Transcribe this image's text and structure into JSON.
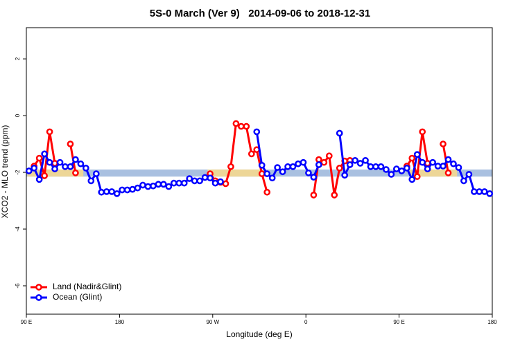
{
  "chart_data": {
    "type": "line",
    "title": "5S-0 March (Ver 9)   2014-09-06 to 2018-12-31",
    "xlabel": "Longitude (deg E)",
    "ylabel": "XCO2 - MLO trend (ppm)",
    "xlim": [
      90,
      540
    ],
    "ylim": [
      -7,
      3.1
    ],
    "xticks": [
      {
        "value": 90,
        "label": "90 E"
      },
      180,
      {
        "value": 270,
        "label": "90 W"
      },
      {
        "value": 360,
        "label": "0"
      },
      {
        "value": 450,
        "label": "90 E"
      },
      {
        "value": 540,
        "label": "180"
      }
    ],
    "yticks": [
      2,
      0,
      -2,
      -4,
      -6
    ],
    "legend": "bottom-left",
    "bands": [
      {
        "x": [
          90,
          540
        ],
        "y": [
          -2.15,
          -1.9
        ],
        "color": "#a9c0e0"
      },
      {
        "x": [
          91,
          145
        ],
        "y": [
          -2.15,
          -1.9
        ],
        "color": "#f9d98a"
      },
      {
        "x": [
          265,
          322
        ],
        "y": [
          -2.15,
          -1.9
        ],
        "color": "#f9d98a"
      },
      {
        "x": [
          460,
          506
        ],
        "y": [
          -2.15,
          -1.9
        ],
        "color": "#f9d98a"
      }
    ],
    "x": [
      92.5,
      97.5,
      102.5,
      107.5,
      112.5,
      117.5,
      122.5,
      127.5,
      132.5,
      137.5,
      142.5,
      147.5,
      152.5,
      157.5,
      162.5,
      167.5,
      172.5,
      177.5,
      182.5,
      187.5,
      192.5,
      197.5,
      202.5,
      207.5,
      212.5,
      217.5,
      222.5,
      227.5,
      232.5,
      237.5,
      242.5,
      247.5,
      252.5,
      257.5,
      262.5,
      267.5,
      272.5,
      277.5,
      282.5,
      287.5,
      292.5,
      297.5,
      302.5,
      307.5,
      312.5,
      317.5,
      322.5,
      327.5,
      332.5,
      337.5,
      342.5,
      347.5,
      352.5,
      357.5,
      362.5,
      367.5,
      372.5,
      377.5,
      382.5,
      387.5,
      392.5,
      397.5,
      402.5,
      407.5,
      412.5,
      417.5,
      422.5,
      427.5,
      432.5,
      437.5,
      442.5,
      447.5,
      452.5,
      457.5,
      462.5,
      467.5,
      472.5,
      477.5,
      482.5,
      487.5,
      492.5,
      497.5,
      502.5,
      507.5,
      512.5,
      517.5,
      522.5,
      527.5,
      532.5,
      537.5
    ],
    "series": [
      {
        "name": "Land (Nadir&Glint)",
        "color": "#ff0000",
        "values": [
          null,
          -1.78,
          -1.5,
          -2.12,
          -0.57,
          -1.68,
          null,
          null,
          -1.0,
          -2.02,
          null,
          null,
          null,
          null,
          null,
          null,
          null,
          null,
          null,
          null,
          null,
          null,
          null,
          null,
          null,
          null,
          null,
          null,
          null,
          null,
          null,
          null,
          null,
          null,
          null,
          -2.05,
          -2.3,
          -2.35,
          -2.4,
          -1.8,
          -0.28,
          -0.38,
          -0.38,
          -1.35,
          -1.2,
          -2.05,
          -2.7,
          null,
          null,
          null,
          null,
          null,
          null,
          null,
          null,
          -2.8,
          -1.55,
          -1.65,
          -1.42,
          -2.8,
          -1.85,
          -1.6,
          -1.58,
          null,
          null,
          null,
          null,
          null,
          null,
          null,
          null,
          null,
          null,
          -1.78,
          -1.5,
          -2.15,
          -0.57,
          -1.68,
          null,
          null,
          -1.0,
          -2.02,
          null,
          null,
          null,
          null,
          null,
          null,
          null,
          null
        ]
      },
      {
        "name": "Ocean (Glint)",
        "color": "#0000ff",
        "values": [
          -1.95,
          -1.85,
          -2.25,
          -1.35,
          -1.65,
          -1.88,
          -1.65,
          -1.8,
          -1.8,
          -1.55,
          -1.7,
          -1.85,
          -2.3,
          -2.05,
          -2.7,
          -2.68,
          -2.68,
          -2.75,
          -2.62,
          -2.62,
          -2.6,
          -2.55,
          -2.45,
          -2.5,
          -2.48,
          -2.42,
          -2.42,
          -2.5,
          -2.38,
          -2.38,
          -2.38,
          -2.22,
          -2.3,
          -2.3,
          -2.18,
          -2.2,
          -2.38,
          -2.33,
          null,
          null,
          null,
          null,
          null,
          null,
          -0.57,
          -1.75,
          -2.05,
          -2.2,
          -1.83,
          -1.98,
          -1.8,
          -1.8,
          -1.7,
          -1.65,
          -2.02,
          -2.17,
          -1.73,
          null,
          null,
          null,
          -0.62,
          -2.1,
          -1.73,
          -1.58,
          -1.68,
          -1.58,
          -1.8,
          -1.8,
          -1.8,
          -1.9,
          -2.07,
          -1.88,
          -1.95,
          -1.85,
          -2.25,
          -1.37,
          -1.65,
          -1.88,
          -1.65,
          -1.78,
          -1.78,
          -1.55,
          -1.7,
          -1.83,
          -2.3,
          -2.07,
          -2.68,
          -2.68,
          -2.68,
          -2.75
        ]
      }
    ]
  }
}
